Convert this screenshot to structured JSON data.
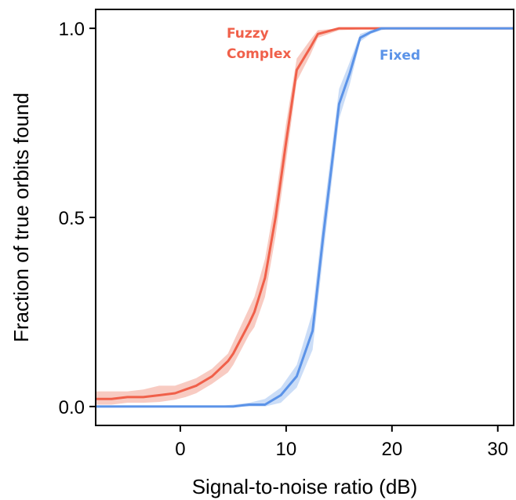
{
  "chart_data": {
    "type": "line",
    "title": "",
    "xlabel": "Signal-to-noise ratio (dB)",
    "ylabel": "Fraction of true orbits found",
    "xlim": [
      -8,
      31.5
    ],
    "ylim": [
      -0.05,
      1.05
    ],
    "xticks": [
      0,
      10,
      20,
      30
    ],
    "xtick_labels": [
      "0",
      "10",
      "20",
      "30"
    ],
    "yticks": [
      0.0,
      0.5,
      1.0
    ],
    "ytick_labels": [
      "0.0",
      "0.5",
      "1.0"
    ],
    "grid": false,
    "legend": "none",
    "series": [
      {
        "name": "Fuzzy Complex",
        "label_lines": [
          "Fuzzy",
          "Complex"
        ],
        "color": "#f0604a",
        "band_color": "#f4a89a",
        "x": [
          -8,
          -6.5,
          -5,
          -3.5,
          -2,
          -0.5,
          0.5,
          1.5,
          3,
          4.5,
          5,
          6.5,
          7,
          8,
          9,
          10,
          11,
          12.3,
          13,
          15,
          20,
          25,
          31.5
        ],
        "y": [
          0.02,
          0.02,
          0.025,
          0.025,
          0.03,
          0.035,
          0.045,
          0.055,
          0.08,
          0.12,
          0.14,
          0.22,
          0.25,
          0.34,
          0.5,
          0.7,
          0.89,
          0.95,
          0.985,
          1.0,
          1.0,
          1.0,
          1.0
        ],
        "lower": [
          0.005,
          0.005,
          0.01,
          0.01,
          0.012,
          0.018,
          0.025,
          0.035,
          0.06,
          0.09,
          0.11,
          0.19,
          0.21,
          0.29,
          0.45,
          0.65,
          0.86,
          0.93,
          0.975,
          0.995,
          1.0,
          1.0,
          1.0
        ],
        "upper": [
          0.04,
          0.04,
          0.04,
          0.045,
          0.055,
          0.055,
          0.065,
          0.075,
          0.1,
          0.14,
          0.17,
          0.26,
          0.29,
          0.39,
          0.55,
          0.75,
          0.92,
          0.97,
          0.995,
          1.0,
          1.0,
          1.0,
          1.0
        ]
      },
      {
        "name": "Fixed",
        "label_lines": [
          "Fixed"
        ],
        "color": "#5b93e8",
        "band_color": "#a9c6f2",
        "x": [
          -8,
          -5,
          0,
          3,
          5,
          6.5,
          8,
          9.5,
          11,
          12.5,
          13.5,
          15,
          16,
          17,
          18,
          19,
          20,
          25,
          31.5
        ],
        "y": [
          0.0,
          0.0,
          0.0,
          0.0,
          0.0,
          0.005,
          0.005,
          0.03,
          0.08,
          0.2,
          0.45,
          0.8,
          0.88,
          0.975,
          0.99,
          1.0,
          1.0,
          1.0,
          1.0
        ],
        "lower": [
          0.0,
          0.0,
          0.0,
          0.0,
          0.0,
          0.0,
          0.0,
          0.01,
          0.05,
          0.15,
          0.4,
          0.76,
          0.85,
          0.965,
          0.985,
          0.995,
          1.0,
          1.0,
          1.0
        ],
        "upper": [
          0.0,
          0.0,
          0.0,
          0.0,
          0.005,
          0.01,
          0.02,
          0.05,
          0.11,
          0.25,
          0.5,
          0.84,
          0.91,
          0.985,
          0.995,
          1.0,
          1.0,
          1.0,
          1.0
        ]
      }
    ]
  }
}
